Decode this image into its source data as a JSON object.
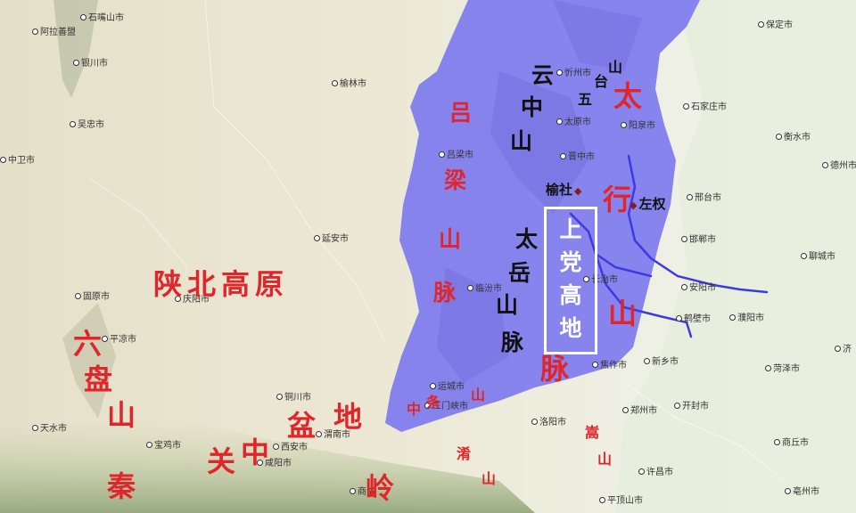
{
  "map": {
    "highlight_color": "#7b78ee",
    "river_color": "#3d3ae0",
    "cities": [
      {
        "name": "石嘴山市"
      },
      {
        "name": "阿拉善盟"
      },
      {
        "name": "银川市"
      },
      {
        "name": "吴忠市"
      },
      {
        "name": "中卫市"
      },
      {
        "name": "榆林市"
      },
      {
        "name": "忻州市"
      },
      {
        "name": "太原市"
      },
      {
        "name": "阳泉市"
      },
      {
        "name": "晋中市"
      },
      {
        "name": "吕梁市"
      },
      {
        "name": "石家庄市"
      },
      {
        "name": "保定市"
      },
      {
        "name": "衡水市"
      },
      {
        "name": "德州市"
      },
      {
        "name": "邢台市"
      },
      {
        "name": "邯郸市"
      },
      {
        "name": "聊城市"
      },
      {
        "name": "延安市"
      },
      {
        "name": "固原市"
      },
      {
        "name": "庆阳市"
      },
      {
        "name": "平凉市"
      },
      {
        "name": "临汾市"
      },
      {
        "name": "长治市"
      },
      {
        "name": "安阳市"
      },
      {
        "name": "濮阳市"
      },
      {
        "name": "鹤壁市"
      },
      {
        "name": "新乡市"
      },
      {
        "name": "焦作市"
      },
      {
        "name": "济"
      },
      {
        "name": "菏泽市"
      },
      {
        "name": "运城市"
      },
      {
        "name": "三门峡市"
      },
      {
        "name": "铜川市"
      },
      {
        "name": "渭南市"
      },
      {
        "name": "西安市"
      },
      {
        "name": "咸阳市"
      },
      {
        "name": "宝鸡市"
      },
      {
        "name": "天水市"
      },
      {
        "name": "洛阳市"
      },
      {
        "name": "郑州市"
      },
      {
        "name": "开封市"
      },
      {
        "name": "商丘市"
      },
      {
        "name": "许昌市"
      },
      {
        "name": "平顶山市"
      },
      {
        "name": "亳州市"
      },
      {
        "name": "商洛"
      }
    ],
    "region_labels": {
      "shaanbei": "陕北高原",
      "liupan": [
        "六",
        "盘",
        "山"
      ],
      "guanzhong": [
        "关",
        "中",
        "盆",
        "地"
      ],
      "qinling": [
        "秦",
        "岭"
      ],
      "lvliang": [
        "吕",
        "梁",
        "山",
        "脉"
      ],
      "yunzhong": [
        "云",
        "中",
        "山"
      ],
      "wutai": [
        "五",
        "台",
        "山"
      ],
      "taiyue": [
        "太",
        "岳",
        "山",
        "脉"
      ],
      "taihang": [
        "太",
        "行",
        "山",
        "脉"
      ],
      "shangdang": [
        "上",
        "党",
        "高",
        "地"
      ],
      "zhongtiao": [
        "中",
        "条",
        "山"
      ],
      "xiao": [
        "淆",
        "山"
      ],
      "song": [
        "嵩",
        "山"
      ]
    },
    "points": {
      "yushe": "榆社",
      "zuoquan": "左权"
    }
  }
}
